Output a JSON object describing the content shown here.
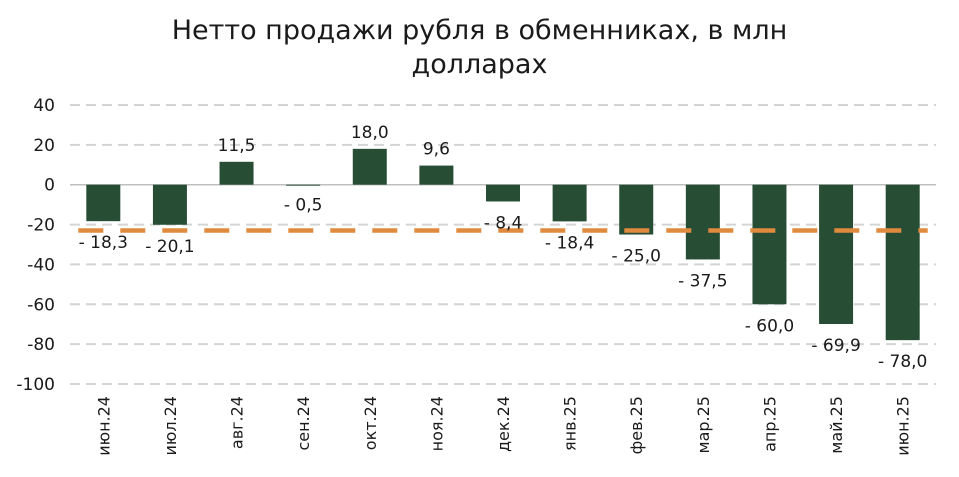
{
  "chart_data": {
    "type": "bar",
    "title_lines": [
      "Нетто продажи рубля в обменниках, в млн",
      "долларах"
    ],
    "categories": [
      "июн.24",
      "июл.24",
      "авг.24",
      "сен.24",
      "окт.24",
      "ноя.24",
      "дек.24",
      "янв.25",
      "фев.25",
      "мар.25",
      "апр.25",
      "май.25",
      "июн.25"
    ],
    "values": [
      -18.3,
      -20.1,
      11.5,
      -0.5,
      18.0,
      9.6,
      -8.4,
      -18.4,
      -25.0,
      -37.5,
      -60.0,
      -69.9,
      -78.0
    ],
    "data_labels": [
      "- 18,3",
      "- 20,1",
      "11,5",
      "- 0,5",
      "18,0",
      "9,6",
      "- 8,4",
      "- 18,4",
      "- 25,0",
      "- 37,5",
      "- 60,0",
      "- 69,9",
      "- 78,0"
    ],
    "ylim": [
      -100,
      40
    ],
    "yticks": [
      40,
      20,
      0,
      -20,
      -40,
      -60,
      -80,
      -100
    ],
    "average_line": -23.0,
    "grid": true,
    "colors": {
      "bar": "#274d35",
      "average_line": "#e08a3e",
      "grid": "#d4d4d4",
      "axis": "#bfbfbf"
    }
  }
}
